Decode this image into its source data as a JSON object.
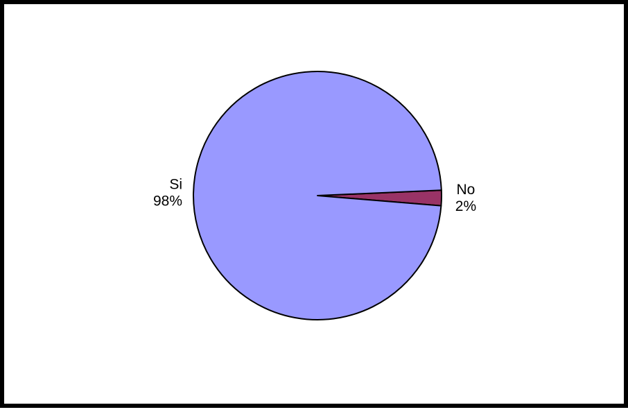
{
  "chart_data": {
    "type": "pie",
    "title": "",
    "slices": [
      {
        "label": "Si",
        "value": 98,
        "percent_label": "98%",
        "color": "#9999FF"
      },
      {
        "label": "No",
        "value": 2,
        "percent_label": "2%",
        "color": "#993366"
      }
    ],
    "legend": "none",
    "outline_color": "#000000"
  }
}
